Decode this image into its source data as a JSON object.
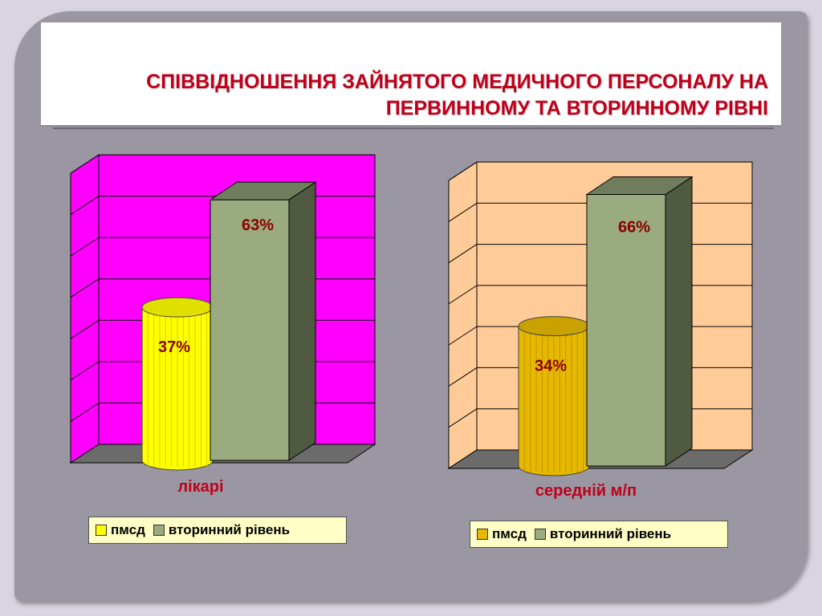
{
  "slide": {
    "title": "СПІВВІДНОШЕННЯ ЗАЙНЯТОГО МЕДИЧНОГО ПЕРСОНАЛУ НА ПЕРВИННОМУ ТА  ВТОРИННОМУ РІВНІ"
  },
  "chart_data": [
    {
      "type": "bar",
      "categories": [
        "лікарі"
      ],
      "series": [
        {
          "name": "пмсд",
          "values": [
            37
          ],
          "label": "37%",
          "shape": "cylinder",
          "color": "#ffff00"
        },
        {
          "name": "вторинний рівень",
          "values": [
            63
          ],
          "label": "63%",
          "shape": "box",
          "color": "#99ab7f"
        }
      ],
      "ylim": [
        0,
        70
      ],
      "grid": true,
      "legend": "bottom",
      "wall_color": "#ff00ff",
      "floor_color": "#6b6b6b"
    },
    {
      "type": "bar",
      "categories": [
        "середній м/п"
      ],
      "series": [
        {
          "name": "пмсд",
          "values": [
            34
          ],
          "label": "34%",
          "shape": "cylinder",
          "color": "#e6b800"
        },
        {
          "name": "вторинний рівень",
          "values": [
            66
          ],
          "label": "66%",
          "shape": "box",
          "color": "#99ab7f"
        }
      ],
      "ylim": [
        0,
        70
      ],
      "grid": true,
      "legend": "bottom",
      "wall_color": "#ffcc99",
      "floor_color": "#6b6b6b"
    }
  ]
}
